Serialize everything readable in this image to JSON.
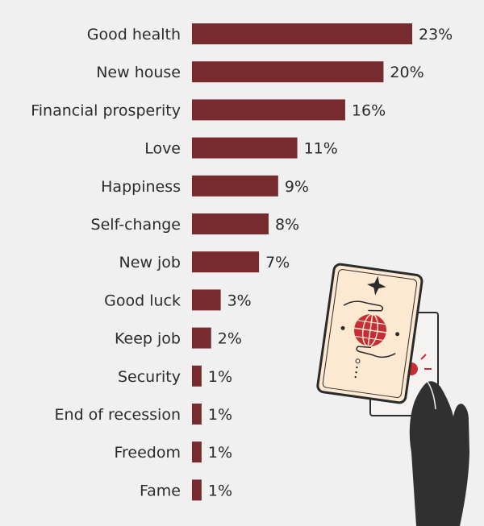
{
  "chart_data": {
    "type": "bar",
    "orientation": "horizontal",
    "categories": [
      "Good health",
      "New house",
      "Financial prosperity",
      "Love",
      "Happiness",
      "Self-change",
      "New job",
      "Good luck",
      "Keep job",
      "Security",
      "End of recession",
      "Freedom",
      "Fame"
    ],
    "values": [
      23,
      20,
      16,
      11,
      9,
      8,
      7,
      3,
      2,
      1,
      1,
      1,
      1
    ],
    "value_suffix": "%",
    "title": "",
    "xlabel": "",
    "ylabel": "",
    "xlim": [
      0,
      23
    ],
    "grid": false,
    "legend": "none",
    "bar_color": "#772b2e"
  },
  "illustration": {
    "name": "tarot-cards-hand",
    "icons": [
      "four-point-star-icon",
      "globe-icon",
      "open-hand-icon",
      "sun-icon",
      "holding-hand-icon"
    ],
    "colors": {
      "card_face": "#fde8d2",
      "accent": "#c62d35",
      "hand": "#303030",
      "outline": "#2b2b2b",
      "back_card": "#f5f3f1"
    }
  }
}
